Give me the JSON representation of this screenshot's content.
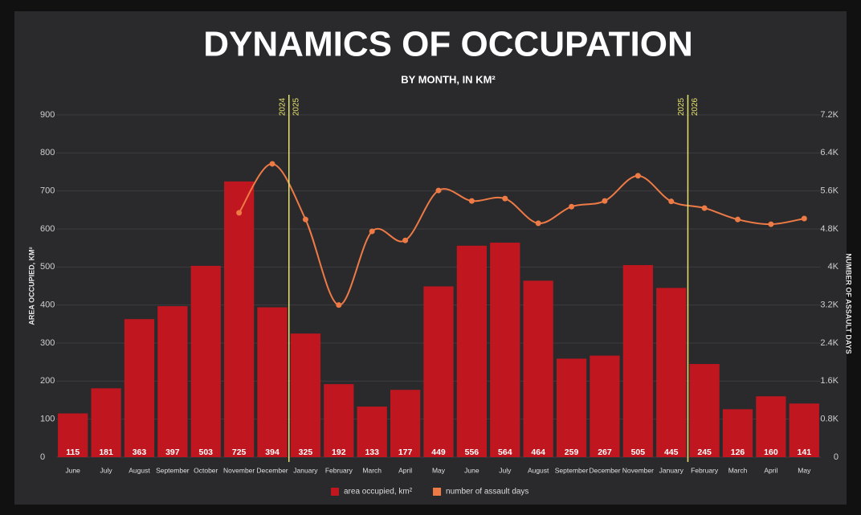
{
  "chart_data": {
    "type": "bar",
    "title": "DYNAMICS OF OCCUPATION",
    "subtitle": "BY MONTH, IN KM²",
    "y_label": "AREA OCCUPIED, KM²",
    "y2_label": "NUMBER OF ASSAULT DAYS",
    "categories": [
      "June",
      "July",
      "August",
      "September",
      "October",
      "November",
      "December",
      "January",
      "February",
      "March",
      "April",
      "May",
      "June",
      "July",
      "August",
      "September",
      "December",
      "November",
      "January",
      "February",
      "March",
      "April",
      "May"
    ],
    "series": [
      {
        "name": "area occupied, km²",
        "type": "bar",
        "color": "#c0161f",
        "values": [
          115,
          181,
          363,
          397,
          503,
          725,
          394,
          325,
          192,
          133,
          177,
          449,
          556,
          564,
          464,
          259,
          267,
          505,
          445,
          245,
          126,
          160,
          141
        ]
      },
      {
        "name": "number of assault days",
        "type": "line",
        "axis": "y2",
        "color": "#ee7a45",
        "values": [
          null,
          null,
          null,
          null,
          null,
          5140,
          6170,
          5000,
          3200,
          4750,
          4560,
          5610,
          5390,
          5440,
          4920,
          5270,
          5390,
          5920,
          5380,
          5240,
          5000,
          4900,
          5020
        ]
      }
    ],
    "ylim": [
      0,
      900
    ],
    "yticks": [
      0,
      100,
      200,
      300,
      400,
      500,
      600,
      700,
      800,
      900
    ],
    "y2lim": [
      0,
      7200
    ],
    "y2ticks": [
      0,
      {
        "value": 800,
        "label": "0.8K"
      },
      {
        "value": 1600,
        "label": "1.6K"
      },
      {
        "value": 2400,
        "label": "2.4K"
      },
      {
        "value": 3200,
        "label": "3.2K"
      },
      {
        "value": 4000,
        "label": "4K"
      },
      {
        "value": 4800,
        "label": "4.8K"
      },
      {
        "value": 5600,
        "label": "5.6K"
      },
      {
        "value": 6400,
        "label": "6.4K"
      },
      {
        "value": 7200,
        "label": "7.2K"
      }
    ],
    "grid": true,
    "legend": "bottom",
    "annotations": [
      [
        "2024",
        "2025"
      ],
      [
        "2025",
        "2026"
      ]
    ]
  }
}
